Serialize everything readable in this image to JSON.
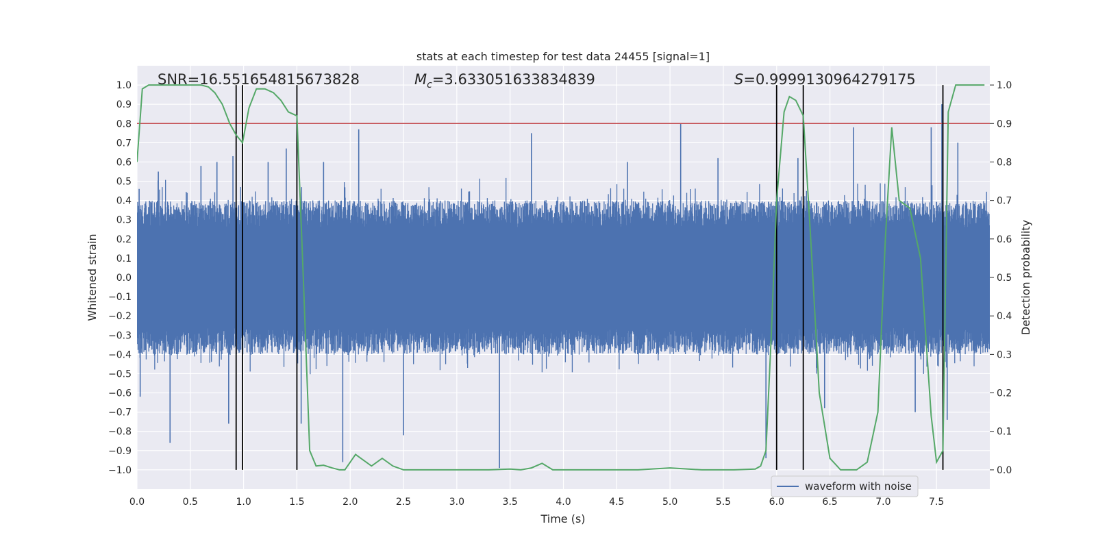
{
  "chart_data": {
    "type": "line",
    "title": "stats at each timestep for test data 24455 [signal=1]",
    "xlabel": "Time (s)",
    "ylabel": "Whitened strain",
    "y2label": "Detection probability",
    "xlim": [
      0.0,
      8.0
    ],
    "ylim": [
      -1.1,
      1.1
    ],
    "y2lim": [
      -0.05,
      1.05
    ],
    "x_ticks": [
      0.0,
      0.5,
      1.0,
      1.5,
      2.0,
      2.5,
      3.0,
      3.5,
      4.0,
      4.5,
      5.0,
      5.5,
      6.0,
      6.5,
      7.0,
      7.5
    ],
    "x_tick_labels": [
      "0.0",
      "0.5",
      "1.0",
      "1.5",
      "2.0",
      "2.5",
      "3.0",
      "3.5",
      "4.0",
      "4.5",
      "5.0",
      "5.5",
      "6.0",
      "6.5",
      "7.0",
      "7.5"
    ],
    "y_ticks": [
      -1.0,
      -0.9,
      -0.8,
      -0.7,
      -0.6,
      -0.5,
      -0.4,
      -0.3,
      -0.2,
      -0.1,
      0.0,
      0.1,
      0.2,
      0.3,
      0.4,
      0.5,
      0.6,
      0.7,
      0.8,
      0.9,
      1.0
    ],
    "y_tick_labels": [
      "−1.0",
      "−0.9",
      "−0.8",
      "−0.7",
      "−0.6",
      "−0.5",
      "−0.4",
      "−0.3",
      "−0.2",
      "−0.1",
      "0.0",
      "0.1",
      "0.2",
      "0.3",
      "0.4",
      "0.5",
      "0.6",
      "0.7",
      "0.8",
      "0.9",
      "1.0"
    ],
    "y2_ticks": [
      0.0,
      0.1,
      0.2,
      0.3,
      0.4,
      0.5,
      0.6,
      0.7,
      0.8,
      0.9,
      1.0
    ],
    "y2_tick_labels": [
      "0.0",
      "0.1",
      "0.2",
      "0.3",
      "0.4",
      "0.5",
      "0.6",
      "0.7",
      "0.8",
      "0.9",
      "1.0"
    ],
    "grid": true,
    "annotations": {
      "snr": "SNR=16.551654815673828",
      "mc_symbol": "M",
      "mc_sub": "c",
      "mc_value": "=3.633051633834839",
      "s_symbol": "S",
      "s_value": "=0.9999130964279175"
    },
    "legend": {
      "position": "lower-right",
      "entries": [
        "waveform with noise"
      ]
    },
    "threshold": {
      "axis": "y2",
      "value": 0.9,
      "color": "#c44e52"
    },
    "vertical_lines": [
      0.93,
      0.99,
      1.5,
      6.0,
      6.25,
      7.56
    ],
    "waveform": {
      "name": "waveform with noise",
      "color": "#4c72b0",
      "band_low": -0.2,
      "band_high": 0.2,
      "typical_amplitude": 0.4,
      "spikes": [
        {
          "t": 0.02,
          "v": 0.46
        },
        {
          "t": 0.03,
          "v": -0.62
        },
        {
          "t": 0.31,
          "v": -0.86
        },
        {
          "t": 0.2,
          "v": 0.55
        },
        {
          "t": 0.6,
          "v": 0.58
        },
        {
          "t": 0.75,
          "v": 0.6
        },
        {
          "t": 0.86,
          "v": -0.76
        },
        {
          "t": 0.9,
          "v": 0.63
        },
        {
          "t": 1.23,
          "v": 0.6
        },
        {
          "t": 1.4,
          "v": 0.67
        },
        {
          "t": 1.54,
          "v": -0.76
        },
        {
          "t": 1.75,
          "v": 0.6
        },
        {
          "t": 1.93,
          "v": -0.96
        },
        {
          "t": 2.08,
          "v": 0.77
        },
        {
          "t": 2.5,
          "v": -0.82
        },
        {
          "t": 3.4,
          "v": -0.99
        },
        {
          "t": 3.7,
          "v": 0.75
        },
        {
          "t": 4.6,
          "v": 0.6
        },
        {
          "t": 5.1,
          "v": 0.8
        },
        {
          "t": 5.45,
          "v": 0.62
        },
        {
          "t": 5.9,
          "v": -0.94
        },
        {
          "t": 6.2,
          "v": 0.62
        },
        {
          "t": 6.45,
          "v": -0.68
        },
        {
          "t": 6.72,
          "v": 0.78
        },
        {
          "t": 7.3,
          "v": -0.7
        },
        {
          "t": 7.45,
          "v": 0.78
        },
        {
          "t": 7.55,
          "v": 0.9
        },
        {
          "t": 7.6,
          "v": -0.74
        },
        {
          "t": 7.7,
          "v": 0.7
        }
      ]
    },
    "probability": {
      "name": "detection probability",
      "color": "#55a868",
      "t": [
        0.0,
        0.05,
        0.11,
        0.2,
        0.3,
        0.4,
        0.5,
        0.6,
        0.67,
        0.73,
        0.8,
        0.87,
        0.93,
        0.99,
        1.05,
        1.12,
        1.2,
        1.28,
        1.35,
        1.42,
        1.5,
        1.56,
        1.62,
        1.68,
        1.75,
        1.83,
        1.9,
        1.95,
        2.0,
        2.05,
        2.1,
        2.2,
        2.3,
        2.4,
        2.5,
        2.7,
        3.0,
        3.3,
        3.5,
        3.6,
        3.7,
        3.8,
        3.9,
        4.0,
        4.3,
        4.5,
        4.7,
        5.0,
        5.3,
        5.6,
        5.8,
        5.85,
        5.9,
        5.95,
        6.0,
        6.07,
        6.12,
        6.18,
        6.25,
        6.32,
        6.4,
        6.5,
        6.6,
        6.75,
        6.85,
        6.95,
        7.02,
        7.08,
        7.15,
        7.25,
        7.35,
        7.45,
        7.5,
        7.56,
        7.61,
        7.68,
        7.75,
        7.85,
        7.95
      ],
      "values": [
        0.8,
        0.99,
        1.0,
        1.0,
        1.0,
        1.0,
        1.0,
        1.0,
        0.995,
        0.98,
        0.95,
        0.9,
        0.87,
        0.85,
        0.94,
        0.99,
        0.99,
        0.98,
        0.96,
        0.93,
        0.92,
        0.5,
        0.05,
        0.01,
        0.012,
        0.005,
        0.0,
        0.0,
        0.02,
        0.04,
        0.03,
        0.01,
        0.03,
        0.01,
        0.0,
        0.0,
        0.0,
        0.0,
        0.002,
        0.0,
        0.005,
        0.017,
        0.0,
        0.0,
        0.0,
        0.0,
        0.0,
        0.005,
        0.0,
        0.0,
        0.002,
        0.01,
        0.05,
        0.35,
        0.7,
        0.93,
        0.97,
        0.96,
        0.92,
        0.6,
        0.2,
        0.03,
        0.0,
        0.0,
        0.02,
        0.15,
        0.6,
        0.89,
        0.7,
        0.68,
        0.55,
        0.14,
        0.02,
        0.05,
        0.93,
        1.0,
        1.0,
        1.0,
        1.0
      ]
    }
  }
}
